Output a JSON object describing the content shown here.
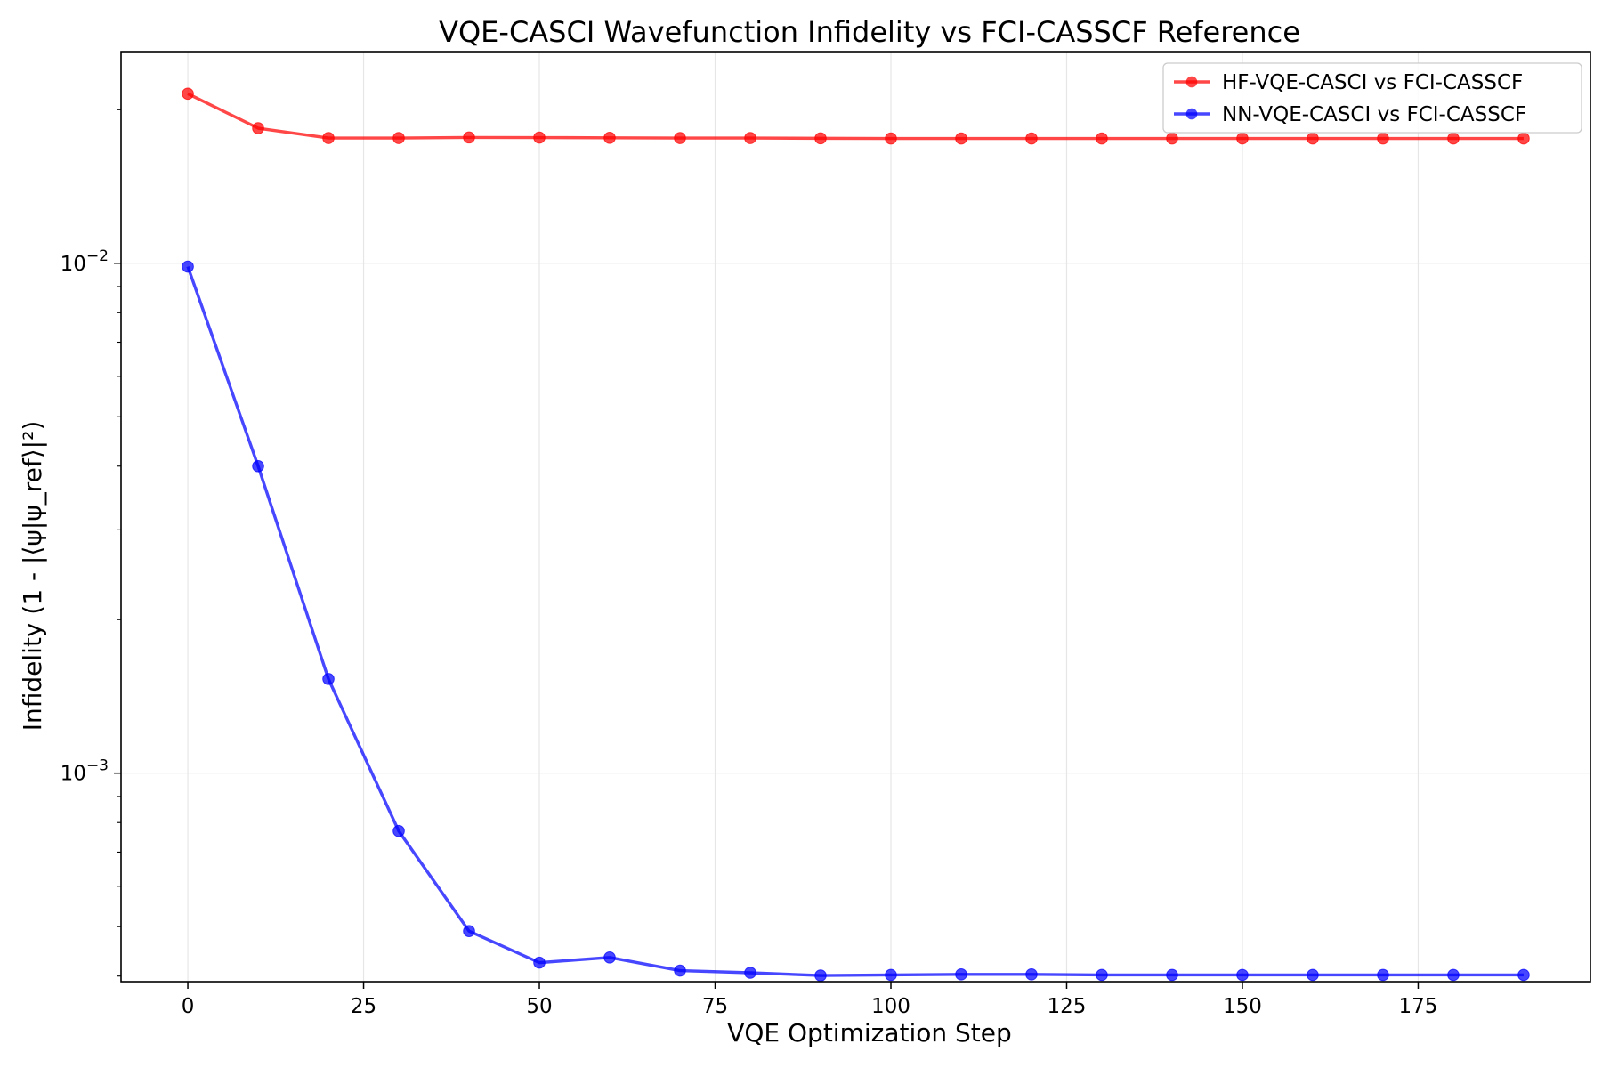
{
  "chart_data": {
    "type": "line",
    "title": "VQE-CASCI Wavefunction Infidelity vs FCI-CASSCF Reference",
    "xlabel": "VQE Optimization Step",
    "ylabel": "Infidelity (1 - |⟨ψ|ψ_ref⟩|²)",
    "yscale": "log",
    "xlim": [
      -9.5,
      199.5
    ],
    "ylim": [
      0.00039,
      0.026
    ],
    "xticks": [
      0,
      25,
      50,
      75,
      100,
      125,
      150,
      175
    ],
    "xtick_labels": [
      "0",
      "25",
      "50",
      "75",
      "100",
      "125",
      "150",
      "175"
    ],
    "yticks": [
      0.001,
      0.01
    ],
    "ytick_labels": [
      {
        "base": "10",
        "exp": "−3"
      },
      {
        "base": "10",
        "exp": "−2"
      }
    ],
    "grid": true,
    "legend_position": "top-right",
    "x": [
      0,
      10,
      20,
      30,
      40,
      50,
      60,
      70,
      80,
      90,
      100,
      110,
      120,
      130,
      140,
      150,
      160,
      170,
      180,
      190
    ],
    "series": [
      {
        "name": "HF-VQE-CASCI vs FCI-CASSCF",
        "color": "#ff0000",
        "values": [
          0.0215,
          0.0184,
          0.0176,
          0.0176,
          0.01765,
          0.01764,
          0.01762,
          0.0176,
          0.0176,
          0.01758,
          0.01757,
          0.01757,
          0.01757,
          0.01757,
          0.01757,
          0.01757,
          0.01757,
          0.01757,
          0.01757,
          0.01757
        ]
      },
      {
        "name": "NN-VQE-CASCI vs FCI-CASSCF",
        "color": "#0000ff",
        "values": [
          0.00985,
          0.004,
          0.00153,
          0.00077,
          0.00049,
          0.000425,
          0.000435,
          0.00041,
          0.000406,
          0.000401,
          0.000402,
          0.000403,
          0.000403,
          0.000402,
          0.000402,
          0.000402,
          0.000402,
          0.000402,
          0.000402,
          0.000402
        ]
      }
    ]
  }
}
